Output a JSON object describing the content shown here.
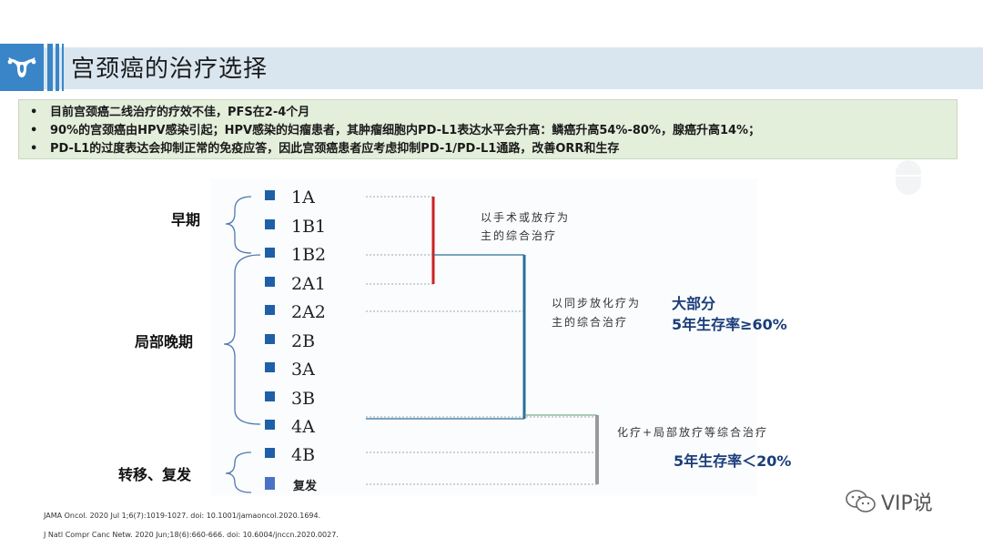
{
  "header": {
    "title": "宫颈癌的治疗选择"
  },
  "summary": {
    "bullets": [
      "目前宫颈癌二线治疗的疗效不佳，PFS在2-4个月",
      "90%的宫颈癌由HPV感染引起；HPV感染的妇瘤患者，其肿瘤细胞内PD-L1表达水平会升高：鳞癌升高54%-80%，腺癌升高14%；",
      "PD-L1的过度表达会抑制正常的免疫应答，因此宫颈癌患者应考虑抑制PD-1/PD-L1通路，改善ORR和生存"
    ]
  },
  "diagram": {
    "groups": [
      "早期",
      "局部晚期",
      "转移、复发"
    ],
    "stages": [
      "1A",
      "1B1",
      "1B2",
      "2A1",
      "2A2",
      "2B",
      "3A",
      "3B",
      "4A",
      "4B",
      "复发"
    ],
    "treatments": [
      "以手术或放疗为",
      "主的综合治疗",
      "以同步放化疗为",
      "主的综合治疗",
      "化疗+局部放疗等综合治疗"
    ],
    "outcomes": [
      "大部分",
      "5年生存率≥60%",
      "5年生存率＜20%"
    ],
    "colors": {
      "early": "#cc2222",
      "locally_advanced": "#2a6f9a",
      "metastatic": "#9a9a9a",
      "stage_marker": "#1f5fa8",
      "recurrence_marker": "#4a72c4"
    }
  },
  "references": [
    "JAMA Oncol. 2020 Jul 1;6(7):1019-1027. doi: 10.1001/jamaoncol.2020.1694.",
    "J Natl Compr Canc Netw. 2020 Jun;18(6):660-666. doi: 10.6004/jnccn.2020.0027."
  ],
  "watermark": {
    "text": "VIP说",
    "icon": "wechat-icon"
  }
}
